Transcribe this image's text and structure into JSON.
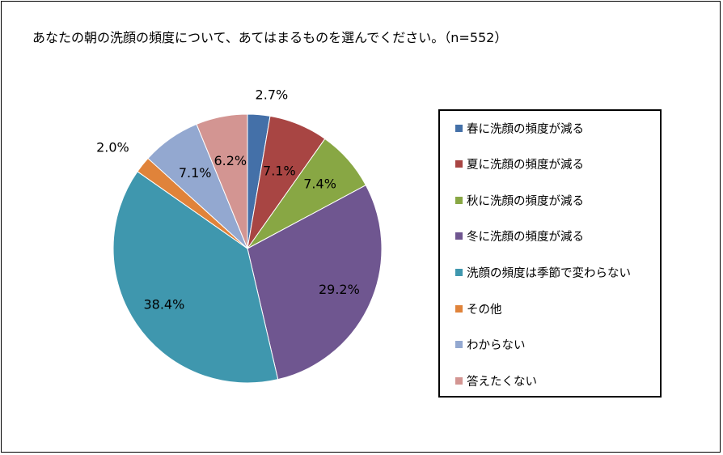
{
  "chart_data": {
    "type": "pie",
    "title": "あなたの朝の洗顔の頻度について、あてはまるものを選んでください。（n=552）",
    "slices": [
      {
        "name": "春に洗顔の頻度が減る",
        "value": 2.7,
        "label": "2.7%",
        "color": "#4470a8"
      },
      {
        "name": "夏に洗顔の頻度が減る",
        "value": 7.1,
        "label": "7.1%",
        "color": "#a84543"
      },
      {
        "name": "秋に洗顔の頻度が減る",
        "value": 7.4,
        "label": "7.4%",
        "color": "#88a744"
      },
      {
        "name": "冬に洗顔の頻度が減る",
        "value": 29.2,
        "label": "29.2%",
        "color": "#6f5690"
      },
      {
        "name": "洗顔の頻度は季節で変わらない",
        "value": 38.4,
        "label": "38.4%",
        "color": "#3f97ae"
      },
      {
        "name": "その他",
        "value": 2.0,
        "label": "2.0%",
        "color": "#e0833a"
      },
      {
        "name": "わからない",
        "value": 7.1,
        "label": "7.1%",
        "color": "#93a8d0"
      },
      {
        "name": "答えたくない",
        "value": 6.2,
        "label": "6.2%",
        "color": "#d39592"
      }
    ],
    "legend_position": "right"
  }
}
